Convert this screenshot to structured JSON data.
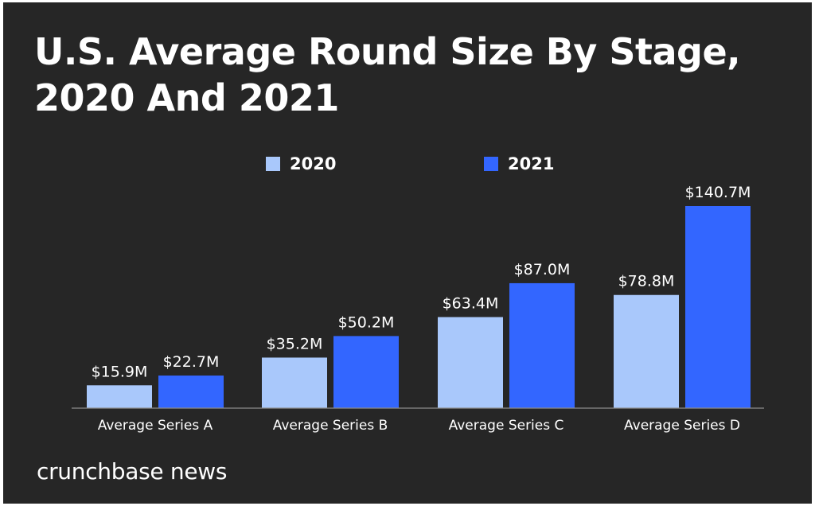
{
  "chart_data": {
    "type": "bar",
    "title_lines": [
      "U.S. Average Round Size By Stage,",
      "2020 And 2021"
    ],
    "categories": [
      "Average Series A",
      "Average Series B",
      "Average Series C",
      "Average Series D"
    ],
    "series": [
      {
        "name": "2020",
        "color": "#a9c8fb",
        "values": [
          15.9,
          35.2,
          63.4,
          78.8
        ],
        "labels": [
          "$15.9M",
          "$35.2M",
          "$63.4M",
          "$78.8M"
        ]
      },
      {
        "name": "2021",
        "color": "#3366ff",
        "values": [
          22.7,
          50.2,
          87.0,
          140.7
        ],
        "labels": [
          "$22.7M",
          "$50.2M",
          "$87.0M",
          "$140.7M"
        ]
      }
    ],
    "unit": "$M",
    "grid": false,
    "legend_position": "top-center",
    "xlabel": "",
    "ylabel": ""
  },
  "branding": {
    "text": "crunchbase news"
  },
  "colors": {
    "background": "#262626",
    "text": "#ffffff",
    "baseline": "#8c8c8c"
  }
}
